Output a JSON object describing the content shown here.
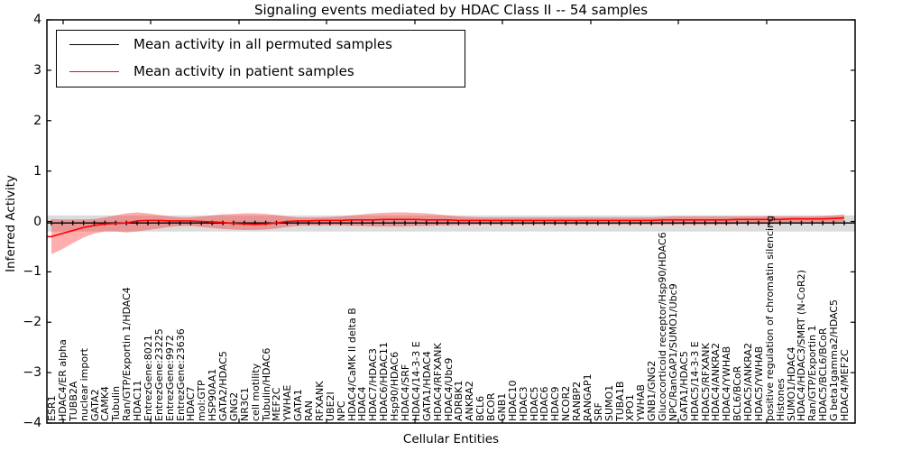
{
  "title": "Signaling events mediated by HDAC Class II -- 54 samples",
  "xlabel": "Cellular Entities",
  "ylabel": "Inferred Activity",
  "legend": [
    {
      "label": "Mean activity in all permuted samples",
      "color": "#000000"
    },
    {
      "label": "Mean activity in patient samples",
      "color": "#ff0000"
    }
  ],
  "colors": {
    "patient_line": "#ff0000",
    "patient_band": "rgba(255,0,0,0.32)",
    "permuted_line": "#000000",
    "permuted_band": "rgba(128,128,128,0.28)",
    "frame": "#000000"
  },
  "chart_data": {
    "type": "line",
    "title": "Signaling events mediated by HDAC Class II -- 54 samples",
    "xlabel": "Cellular Entities",
    "ylabel": "Inferred Activity",
    "ylim": [
      -4,
      4
    ],
    "y_ticks": [
      4,
      3,
      2,
      1,
      0,
      -1,
      -2,
      -3,
      -4
    ],
    "grid": false,
    "legend_position": "upper left",
    "categories": [
      "ESR1",
      "HDAC4/ER alpha",
      "TUBB2A",
      "nuclear import",
      "GATA2",
      "CAMK4",
      "Tubulin",
      "Ran/GTP/Exportin 1/HDAC4",
      "HDAC11",
      "EntrezGene:8021",
      "EntrezGene:23225",
      "EntrezGene:9972",
      "EntrezGene:23636",
      "HDAC7",
      "mol:GTP",
      "HSP90AA1",
      "GATA2/HDAC5",
      "GNG2",
      "NR3C1",
      "cell motility",
      "Tubulin/HDAC6",
      "MEF2C",
      "YWHAE",
      "GATA1",
      "RAN",
      "RFXANK",
      "UBE2I",
      "NPC",
      "HDAC4/CaMK II delta B",
      "HDAC4",
      "HDAC7/HDAC3",
      "HDAC6/HDAC11",
      "Hsp90/HDAC6",
      "HDAC4/SRF",
      "HDAC4/14-3-3 E",
      "GATA1/HDAC4",
      "HDAC4/RFXANK",
      "HDAC4/Ubc9",
      "ADRBK1",
      "ANKRA2",
      "BCL6",
      "BCOR",
      "GNB1",
      "HDAC10",
      "HDAC3",
      "HDAC5",
      "HDAC6",
      "HDAC9",
      "NCOR2",
      "RANBP2",
      "RANGAP1",
      "SRF",
      "SUMO1",
      "TUBA1B",
      "XPO1",
      "YWHAB",
      "GNB1/GNG2",
      "Glucocorticoid receptor/Hsp90/HDAC6",
      "NPC/RanGAP1/SUMO1/Ubc9",
      "GATA1/HDAC5",
      "HDAC5/14-3-3 E",
      "HDAC5/RFXANK",
      "HDAC4/ANKRA2",
      "HDAC4/YWHAB",
      "BCL6/BCoR",
      "HDAC5/ANKRA2",
      "HDAC5/YWHAB",
      "positive regulation of chromatin silencing",
      "Histones",
      "SUMO1/HDAC4",
      "HDAC4/HDAC3/SMRT (N-CoR2)",
      "Ran/GTP/Exportin 1",
      "HDAC5/BCL6/BCoR",
      "G beta1gamma2/HDAC5",
      "HDAC4/MEF2C"
    ],
    "series": [
      {
        "name": "Mean activity in all permuted samples",
        "color": "#000000",
        "constant_value": -0.03,
        "band": {
          "upper": 0.12,
          "lower": -0.2
        }
      },
      {
        "name": "Mean activity in patient samples",
        "color": "#ff0000",
        "values": [
          -0.3,
          -0.24,
          -0.18,
          -0.12,
          -0.08,
          -0.05,
          -0.04,
          -0.03,
          0.01,
          0.02,
          0.02,
          0.01,
          0.01,
          0.01,
          0.0,
          -0.01,
          -0.02,
          -0.04,
          -0.05,
          -0.06,
          -0.05,
          -0.03,
          0.0,
          0.01,
          0.01,
          0.02,
          0.02,
          0.02,
          0.03,
          0.03,
          0.03,
          0.04,
          0.04,
          0.04,
          0.04,
          0.03,
          0.03,
          0.03,
          0.02,
          0.02,
          0.02,
          0.02,
          0.02,
          0.02,
          0.02,
          0.02,
          0.02,
          0.02,
          0.02,
          0.02,
          0.02,
          0.02,
          0.02,
          0.02,
          0.02,
          0.02,
          0.02,
          0.03,
          0.03,
          0.03,
          0.03,
          0.03,
          0.03,
          0.03,
          0.04,
          0.04,
          0.04,
          0.04,
          0.04,
          0.05,
          0.05,
          0.05,
          0.05,
          0.06,
          0.07
        ],
        "band_upper": [
          0.05,
          0.04,
          0.04,
          0.04,
          0.05,
          0.08,
          0.12,
          0.16,
          0.18,
          0.16,
          0.13,
          0.1,
          0.08,
          0.08,
          0.1,
          0.12,
          0.14,
          0.15,
          0.16,
          0.16,
          0.15,
          0.13,
          0.1,
          0.08,
          0.08,
          0.08,
          0.09,
          0.1,
          0.12,
          0.14,
          0.16,
          0.17,
          0.18,
          0.18,
          0.17,
          0.16,
          0.14,
          0.12,
          0.1,
          0.09,
          0.08,
          0.08,
          0.08,
          0.08,
          0.08,
          0.08,
          0.08,
          0.08,
          0.08,
          0.08,
          0.08,
          0.08,
          0.08,
          0.08,
          0.08,
          0.08,
          0.08,
          0.09,
          0.1,
          0.1,
          0.1,
          0.1,
          0.1,
          0.1,
          0.1,
          0.1,
          0.1,
          0.1,
          0.1,
          0.1,
          0.1,
          0.1,
          0.11,
          0.12,
          0.14
        ],
        "band_lower": [
          -0.65,
          -0.55,
          -0.43,
          -0.32,
          -0.24,
          -0.2,
          -0.2,
          -0.22,
          -0.2,
          -0.17,
          -0.14,
          -0.11,
          -0.09,
          -0.09,
          -0.11,
          -0.13,
          -0.15,
          -0.16,
          -0.17,
          -0.17,
          -0.16,
          -0.14,
          -0.11,
          -0.09,
          -0.08,
          -0.08,
          -0.08,
          -0.08,
          -0.09,
          -0.09,
          -0.1,
          -0.1,
          -0.1,
          -0.1,
          -0.09,
          -0.09,
          -0.08,
          -0.08,
          -0.07,
          -0.07,
          -0.06,
          -0.06,
          -0.06,
          -0.06,
          -0.06,
          -0.06,
          -0.06,
          -0.06,
          -0.06,
          -0.06,
          -0.06,
          -0.06,
          -0.06,
          -0.06,
          -0.06,
          -0.06,
          -0.06,
          -0.06,
          -0.06,
          -0.06,
          -0.06,
          -0.06,
          -0.06,
          -0.06,
          -0.05,
          -0.05,
          -0.05,
          -0.05,
          -0.05,
          -0.05,
          -0.04,
          -0.04,
          -0.03,
          -0.02,
          -0.01
        ]
      }
    ]
  }
}
